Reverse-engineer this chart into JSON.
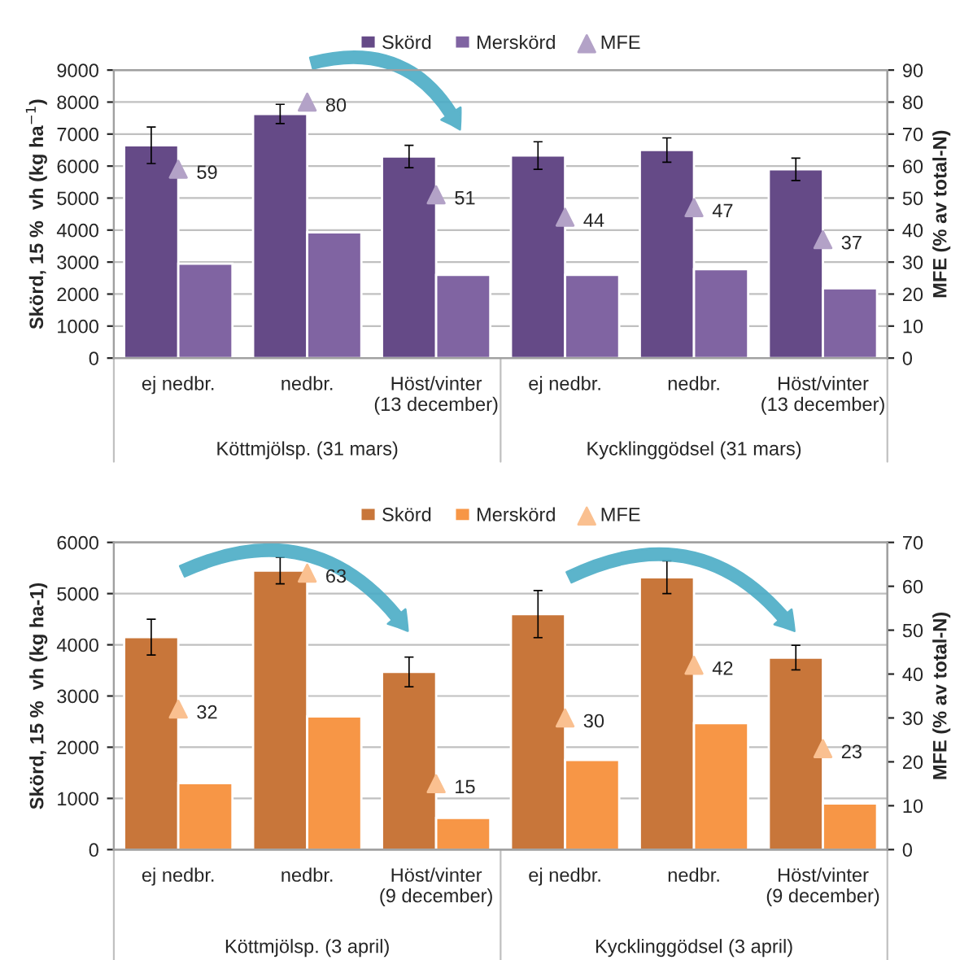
{
  "chart_data": [
    {
      "type": "bar",
      "categories": [
        "ej nedbr.",
        "nedbr.",
        "Höst/vinter\n(13 december)",
        "ej nedbr.",
        "nedbr.",
        "Höst/vinter\n(13 december)"
      ],
      "series": [
        {
          "name": "Skörd",
          "color": "#654a87",
          "values": [
            6650,
            7630,
            6300,
            6330,
            6500,
            5900
          ],
          "errors": [
            570,
            300,
            350,
            430,
            380,
            350
          ]
        },
        {
          "name": "Merskörd",
          "color": "#8064a2",
          "values": [
            2950,
            3930,
            2600,
            2600,
            2780,
            2180
          ]
        },
        {
          "name": "MFE",
          "type": "scatter",
          "axis": "y2",
          "marker": "triangle",
          "color": "#b3a2c7",
          "values": [
            59,
            80,
            51,
            44,
            47,
            37
          ],
          "value_labels": [
            "59",
            "80",
            "51",
            "44",
            "47",
            "37"
          ]
        }
      ],
      "ylabel": "Skörd, 15 %  vh (kg ha$^{−1}$)",
      "y2label": "MFE (% av total-N)",
      "ylim": [
        0,
        9000
      ],
      "yticks": [
        0,
        1000,
        2000,
        3000,
        4000,
        5000,
        6000,
        7000,
        8000,
        9000
      ],
      "y2lim": [
        0,
        90
      ],
      "y2ticks": [
        0,
        10,
        20,
        30,
        40,
        50,
        60,
        70,
        80,
        90
      ],
      "annotations": [
        "Köttmjölsp. (31 mars)",
        "Kycklinggödsel (31 mars)"
      ],
      "grid": "y",
      "legend": "top"
    },
    {
      "type": "bar",
      "categories": [
        "ej nedbr.",
        "nedbr.",
        "Höst/vinter\n(9 december)",
        "ej nedbr.",
        "nedbr.",
        "Höst/vinter\n(9 december)"
      ],
      "series": [
        {
          "name": "Skörd",
          "color": "#c8763a",
          "values": [
            4150,
            5450,
            3470,
            4600,
            5320,
            3750
          ],
          "errors": [
            350,
            260,
            290,
            460,
            320,
            240
          ]
        },
        {
          "name": "Merskörd",
          "color": "#f79646",
          "values": [
            1300,
            2600,
            620,
            1750,
            2470,
            900
          ]
        },
        {
          "name": "MFE",
          "type": "scatter",
          "axis": "y2",
          "marker": "triangle",
          "color": "#fac090",
          "values": [
            32,
            63,
            15,
            30,
            42,
            23
          ],
          "value_labels": [
            "32",
            "63",
            "15",
            "30",
            "42",
            "23"
          ]
        }
      ],
      "ylabel": "Skörd, 15 %  vh (kg ha-1)",
      "y2label": "MFE (% av total-N)",
      "ylim": [
        0,
        6000
      ],
      "yticks": [
        0,
        1000,
        2000,
        3000,
        4000,
        5000,
        6000
      ],
      "y2lim": [
        0,
        70
      ],
      "y2ticks": [
        0,
        10,
        20,
        30,
        40,
        50,
        60,
        70
      ],
      "annotations": [
        "Köttmjölsp. (3 april)",
        "Kycklinggödsel (3 april)"
      ],
      "grid": "y",
      "legend": "top"
    }
  ]
}
